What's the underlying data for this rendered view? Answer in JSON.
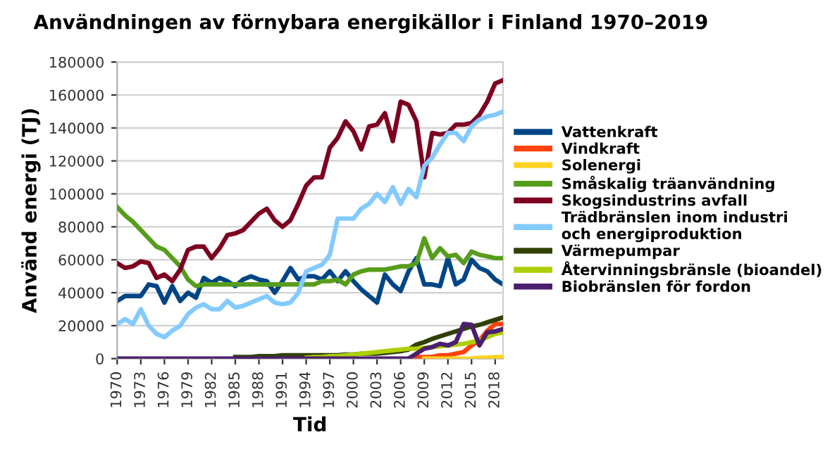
{
  "chart_data": {
    "type": "line",
    "title": "Användningen av förnybara energikällor i Finland 1970–2019",
    "xlabel": "Tid",
    "ylabel": "Använd energi (TJ)",
    "x": [
      1970,
      1971,
      1972,
      1973,
      1974,
      1975,
      1976,
      1977,
      1978,
      1979,
      1980,
      1981,
      1982,
      1983,
      1984,
      1985,
      1986,
      1987,
      1988,
      1989,
      1990,
      1991,
      1992,
      1993,
      1994,
      1995,
      1996,
      1997,
      1998,
      1999,
      2000,
      2001,
      2002,
      2003,
      2004,
      2005,
      2006,
      2007,
      2008,
      2009,
      2010,
      2011,
      2012,
      2013,
      2014,
      2015,
      2016,
      2017,
      2018,
      2019
    ],
    "xlim": [
      1970,
      2019
    ],
    "xticks": [
      1970,
      1973,
      1976,
      1979,
      1982,
      1985,
      1988,
      1991,
      1994,
      1997,
      2000,
      2003,
      2006,
      2009,
      2012,
      2015,
      2018
    ],
    "ylim": [
      0,
      180000
    ],
    "yticks": [
      0,
      20000,
      40000,
      60000,
      80000,
      100000,
      120000,
      140000,
      160000,
      180000
    ],
    "grid": "y",
    "legend": "right",
    "marker": "none",
    "line_style": "solid",
    "series": [
      {
        "name": "Vattenkraft",
        "color": "#004586",
        "values": [
          35000,
          38000,
          38000,
          38000,
          45000,
          44000,
          34000,
          44000,
          35000,
          40000,
          37000,
          49000,
          46000,
          49000,
          47000,
          44000,
          48000,
          50000,
          48000,
          47000,
          40000,
          47000,
          55000,
          48000,
          50000,
          50000,
          48000,
          53000,
          47000,
          53000,
          47000,
          42000,
          38000,
          34000,
          51000,
          45000,
          41000,
          53000,
          61000,
          45000,
          45000,
          44000,
          61000,
          45000,
          48000,
          60000,
          55000,
          53000,
          48000,
          45000
        ]
      },
      {
        "name": "Vindkraft",
        "color": "#ff420e",
        "values": [
          null,
          null,
          null,
          null,
          null,
          null,
          null,
          null,
          null,
          null,
          null,
          null,
          null,
          null,
          null,
          null,
          null,
          null,
          null,
          null,
          null,
          null,
          null,
          null,
          null,
          null,
          null,
          null,
          null,
          null,
          null,
          null,
          null,
          null,
          null,
          null,
          null,
          null,
          1000,
          1000,
          1000,
          2000,
          2000,
          3000,
          4000,
          8000,
          11000,
          17000,
          21000,
          21000
        ]
      },
      {
        "name": "Solenergi",
        "color": "#ffd320",
        "values": [
          null,
          null,
          null,
          null,
          null,
          null,
          null,
          null,
          null,
          null,
          null,
          null,
          null,
          null,
          null,
          null,
          null,
          null,
          null,
          null,
          null,
          null,
          null,
          null,
          null,
          null,
          null,
          null,
          null,
          null,
          null,
          null,
          null,
          null,
          null,
          null,
          null,
          null,
          null,
          0,
          0,
          0,
          0,
          0,
          0,
          0,
          500,
          500,
          1000,
          1000
        ]
      },
      {
        "name": "Småskalig träanvändning",
        "color": "#579d1c",
        "values": [
          92000,
          87000,
          83000,
          78000,
          73000,
          68000,
          66000,
          61000,
          56000,
          48000,
          44000,
          45000,
          45000,
          45000,
          45000,
          45000,
          45000,
          45000,
          45000,
          45000,
          45000,
          45000,
          45000,
          45000,
          45000,
          45000,
          47000,
          47000,
          48000,
          45000,
          51000,
          53000,
          54000,
          54000,
          54000,
          55000,
          56000,
          56000,
          58000,
          73000,
          61000,
          67000,
          62000,
          63000,
          58000,
          65000,
          63000,
          62000,
          61000,
          61000
        ]
      },
      {
        "name": "Skogsindustrins avfall",
        "color": "#7e0021",
        "values": [
          58000,
          55000,
          56000,
          59000,
          58000,
          49000,
          51000,
          47000,
          54000,
          66000,
          68000,
          68000,
          61000,
          67000,
          75000,
          76000,
          78000,
          83000,
          88000,
          91000,
          84000,
          80000,
          84000,
          94000,
          105000,
          110000,
          110000,
          128000,
          134000,
          144000,
          138000,
          127000,
          141000,
          142000,
          149000,
          132000,
          156000,
          154000,
          144000,
          110000,
          137000,
          136000,
          137000,
          142000,
          142000,
          143000,
          148000,
          156000,
          167000,
          169000
        ]
      },
      {
        "name": "Trädbränslen inom industri\noch energiproduktion",
        "color": "#83caff",
        "values": [
          21000,
          24000,
          21000,
          30000,
          20000,
          15000,
          13000,
          17000,
          20000,
          27000,
          31000,
          33000,
          30000,
          30000,
          35000,
          31000,
          32000,
          34000,
          36000,
          38000,
          34000,
          33000,
          34000,
          40000,
          53000,
          55000,
          57000,
          63000,
          85000,
          85000,
          85000,
          91000,
          94000,
          100000,
          95000,
          104000,
          94000,
          103000,
          98000,
          117000,
          122000,
          130000,
          137000,
          137000,
          132000,
          141000,
          145000,
          147000,
          148000,
          150000
        ]
      },
      {
        "name": "Värmepumpar",
        "color": "#314004",
        "values": [
          null,
          null,
          null,
          null,
          null,
          null,
          null,
          null,
          null,
          null,
          null,
          null,
          null,
          null,
          null,
          1000,
          1000,
          1000,
          1500,
          1500,
          1500,
          2000,
          2000,
          2000,
          2000,
          2000,
          2000,
          2000,
          2000,
          2500,
          2500,
          3000,
          3000,
          3000,
          3500,
          4000,
          4500,
          5500,
          8500,
          10000,
          12000,
          13500,
          15000,
          16500,
          18000,
          19500,
          20500,
          22000,
          23500,
          25000
        ]
      },
      {
        "name": "Återvinningsbränsle (bioandel)",
        "color": "#aecf00",
        "values": [
          null,
          null,
          null,
          null,
          null,
          null,
          null,
          null,
          null,
          null,
          null,
          null,
          null,
          null,
          null,
          null,
          null,
          null,
          null,
          null,
          null,
          null,
          null,
          null,
          500,
          1000,
          1000,
          1500,
          1500,
          2000,
          2500,
          3000,
          3500,
          4000,
          4500,
          5000,
          5500,
          6000,
          6000,
          6500,
          7000,
          7500,
          8000,
          8500,
          9000,
          10000,
          11000,
          13000,
          15000,
          16000
        ]
      },
      {
        "name": "Biobränslen för fordon",
        "color": "#4b1f6f",
        "values": [
          0,
          0,
          0,
          0,
          0,
          0,
          0,
          0,
          0,
          0,
          0,
          0,
          0,
          0,
          0,
          0,
          0,
          0,
          0,
          0,
          0,
          0,
          0,
          0,
          0,
          0,
          0,
          0,
          0,
          0,
          0,
          0,
          0,
          0,
          0,
          0,
          0,
          0,
          3000,
          6000,
          7000,
          9000,
          8000,
          10000,
          21000,
          20500,
          8000,
          16000,
          16500,
          18000
        ]
      }
    ]
  }
}
